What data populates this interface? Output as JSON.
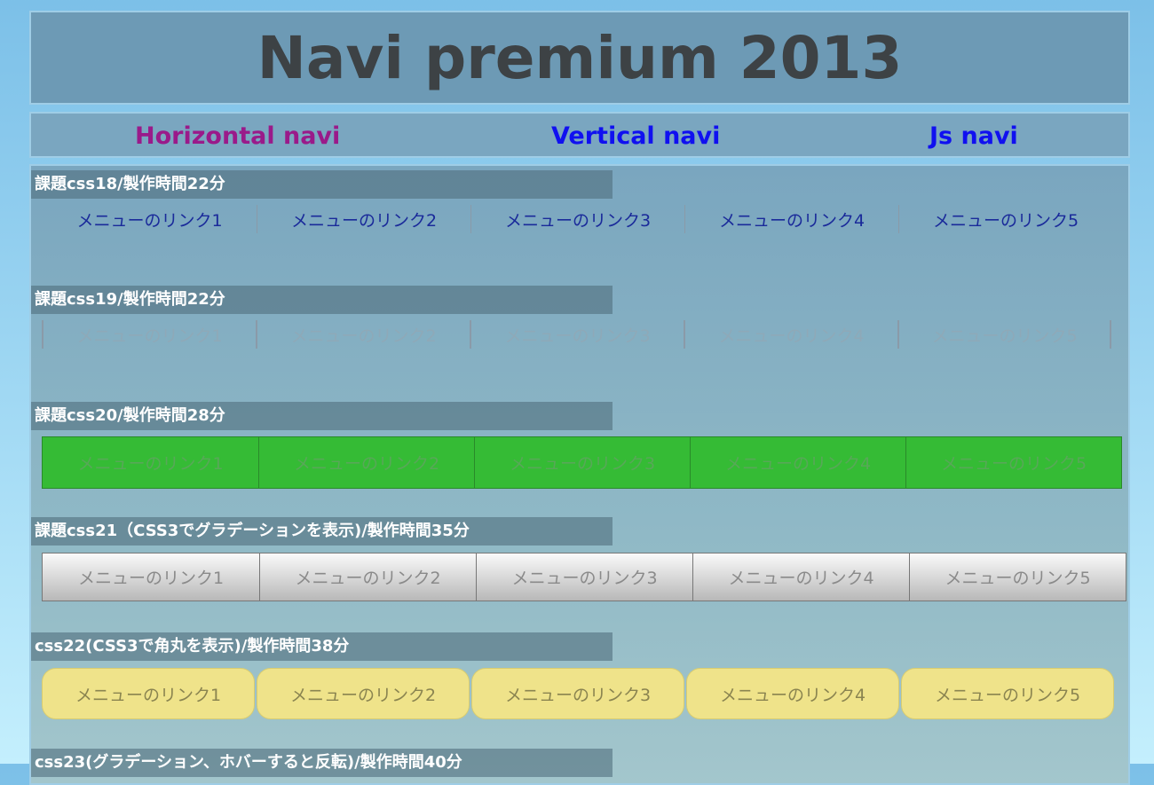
{
  "header": {
    "title": "Navi premium 2013"
  },
  "nav": [
    {
      "label": "Horizontal navi",
      "color": "#9a1a8a"
    },
    {
      "label": "Vertical navi",
      "color": "#1010f0"
    },
    {
      "label": "Js navi",
      "color": "#1010f0"
    }
  ],
  "menu_items": [
    "メニューのリンク1",
    "メニューのリンク2",
    "メニューのリンク3",
    "メニューのリンク4",
    "メニューのリンク5"
  ],
  "sections": [
    {
      "title": "課題css18/製作時間22分"
    },
    {
      "title": "課題css19/製作時間22分"
    },
    {
      "title": "課題css20/製作時間28分",
      "accent": "#35bb35"
    },
    {
      "title": "課題css21（CSS3でグラデーションを表示)/製作時間35分"
    },
    {
      "title": "css22(CSS3で角丸を表示)/製作時間38分",
      "accent": "#efe38a"
    },
    {
      "title": "css23(グラデーション、ホバーすると反転)/製作時間40分"
    }
  ]
}
